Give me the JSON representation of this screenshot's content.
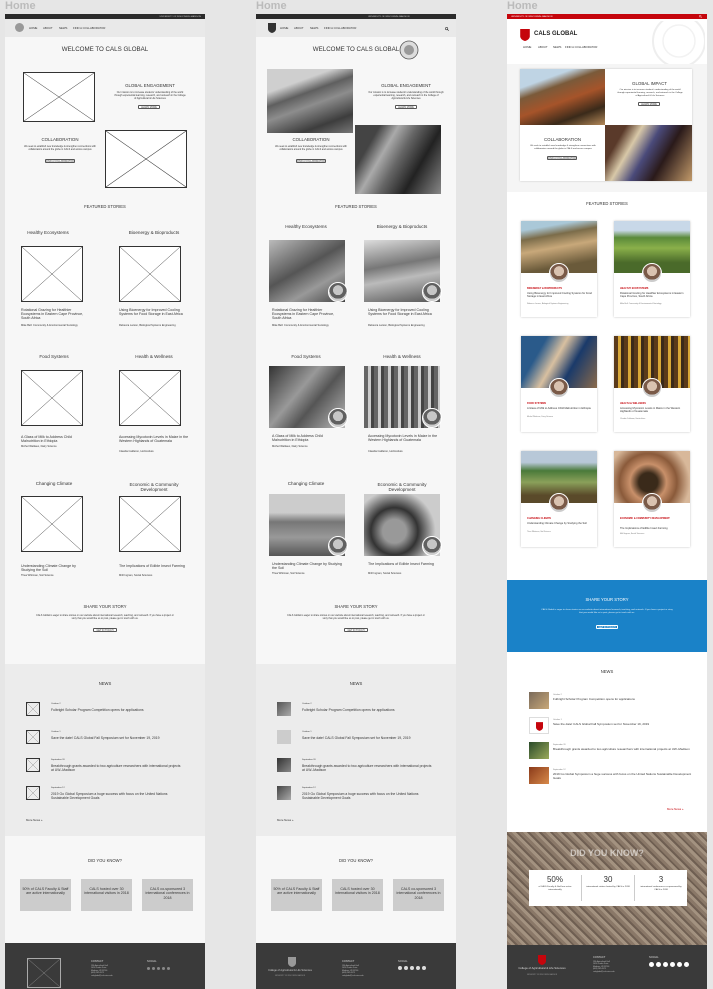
{
  "frame_label": "Home",
  "topbar": {
    "university": "UNIVERSITY OF WISCONSIN–MADISON"
  },
  "nav": {
    "items": [
      "HOME",
      "ABOUT",
      "NEWS",
      "FIND A COLLABORATOR"
    ]
  },
  "brand": {
    "title": "CALS GLOBAL"
  },
  "hero": {
    "welcome": "WELCOME TO CALS GLOBAL",
    "engagement_title": "GLOBAL ENGAGEMENT",
    "engagement_text": "Our mission is to increase students' understanding of the world through experiential learning, research, and outreach in the College of Agricultural & Life Sciences",
    "impact_title": "GLOBAL IMPACT",
    "learn_more": "LEARN MORE",
    "collab_title": "COLLABORATION",
    "collab_text": "We seek to establish new knowledge & strengthen connections with collaborators around the globe in CALS and across campus",
    "collab_button": "FIND A COLLABORATOR"
  },
  "featured": {
    "heading": "FEATURED STORIES",
    "stories": [
      {
        "category": "Healthy Ecosystems",
        "category_caps": "HEALTHY ECOSYSTEMS",
        "title": "Rotational Grazing for Healthier Ecosystems in Eastern Cape Province, South Africa",
        "byline": "Mike Bell: Community & Environmental Sociology"
      },
      {
        "category": "Bioenergy & Bioproducts",
        "category_caps": "BIOENERGY & BIOPRODUCTS",
        "title": "Using Bioenergy for Improved Cooling Systems for Food Storage in East Africa",
        "byline": "Rebecca Larson, Biological Systems Engineering"
      },
      {
        "category": "Food Systems",
        "category_caps": "FOOD SYSTEMS",
        "title": "A Glass of Milk to Address Child Malnutrition in Ethiopia",
        "byline": "Michel Wattiaux, Dairy Science"
      },
      {
        "category": "Health & Wellness",
        "category_caps": "HEALTH & WELLNESS",
        "title": "Accessing Mycotoxin Levels in Maize in the Western Highlands of Guatemala",
        "byline": "Claudia Calderon, Horticulture"
      },
      {
        "category": "Changing Climate",
        "category_caps": "CHANGING CLIMATE",
        "title": "Understanding Climate Change by Studying the Soil",
        "byline": "Thea Whitman, Soil Science"
      },
      {
        "category": "Economic & Community Development",
        "category_caps": "ECONOMIC & COMMUNITY DEVELOPMENT",
        "title": "The Implications of Edible Insect Farming",
        "byline": "Mrill Ingram, Social Sciences"
      }
    ]
  },
  "share": {
    "heading": "SHARE YOUR STORY",
    "text": "CALS Global is eager to share stories on our website about international research, teaching, and outreach. If you have a project or story that you would like us to post, please get in touch with us.",
    "button": "GET IN TOUCH"
  },
  "news": {
    "heading": "NEWS",
    "items": [
      {
        "date": "October 2",
        "title": "Fulbright Scholar Program Competition opens for applications"
      },
      {
        "date": "October 1",
        "title": "Save the date! CALS Global Fall Symposium set for November 19, 2019"
      },
      {
        "date": "September 20",
        "title": "Breakthrough grants awarded to two agriculture researchers with international projects at UW–Madison"
      },
      {
        "date": "September 12",
        "title": "2019 Go Global Symposium a huge success with focus on the United Nations Sustainable Development Goals"
      }
    ],
    "more": "More News »"
  },
  "dyk": {
    "heading": "DID YOU KNOW?",
    "stats": [
      "50% of CALS Faculty & Staff are active internationally",
      "CALS hosted over 30 international visitors in 2018",
      "CALS co-sponsored 3 international conferences in 2018"
    ],
    "stats_v3": [
      {
        "big": "50%",
        "small": "of CALS Faculty & Staff are active internationally"
      },
      {
        "big": "30",
        "small": "international visitors hosted by CALS in 2018"
      },
      {
        "big": "3",
        "small": "international conferences co-sponsored by CALS in 2018"
      }
    ]
  },
  "footer": {
    "contact_heading": "CONTACT",
    "contact_lines": [
      "136 Agricultural Hall",
      "1450 Linden Drive",
      "Madison, WI 53706",
      "(608) 262-6975",
      "calsglobal@cals.wisc.edu"
    ],
    "social_heading": "SOCIAL",
    "college_name": "College of Agricultural & Life Sciences",
    "college_sub": "UNIVERSITY OF WISCONSIN–MADISON"
  },
  "colors": {
    "uw_red": "#c5050c",
    "share_blue": "#1a82c8",
    "footer_dark": "#3a3a3a"
  }
}
